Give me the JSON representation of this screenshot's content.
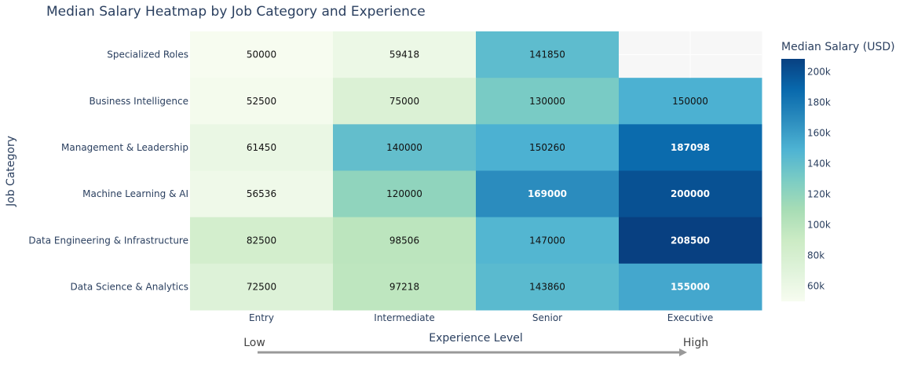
{
  "chart_data": {
    "type": "heatmap",
    "title": "Median Salary Heatmap by Job Category and Experience",
    "xlabel": "Experience Level",
    "ylabel": "Job Category",
    "x_categories": [
      "Entry",
      "Intermediate",
      "Senior",
      "Executive"
    ],
    "y_categories": [
      "Specialized Roles",
      "Business Intelligence",
      "Management & Leadership",
      "Machine Learning & AI",
      "Data Engineering & Infrastructure",
      "Data Science & Analytics"
    ],
    "values": [
      [
        50000,
        59418,
        141850,
        null
      ],
      [
        52500,
        75000,
        130000,
        150000
      ],
      [
        61450,
        140000,
        150260,
        187098
      ],
      [
        56536,
        120000,
        169000,
        200000
      ],
      [
        82500,
        98506,
        147000,
        208500
      ],
      [
        72500,
        97218,
        143860,
        155000
      ]
    ],
    "colorbar": {
      "title": "Median Salary (USD)",
      "min": 50000,
      "max": 208500,
      "ticks": [
        {
          "value": 60000,
          "label": "60k"
        },
        {
          "value": 80000,
          "label": "80k"
        },
        {
          "value": 100000,
          "label": "100k"
        },
        {
          "value": 120000,
          "label": "120k"
        },
        {
          "value": 140000,
          "label": "140k"
        },
        {
          "value": 160000,
          "label": "160k"
        },
        {
          "value": 180000,
          "label": "180k"
        },
        {
          "value": 200000,
          "label": "200k"
        }
      ],
      "colorscale": [
        "#f7fcf0",
        "#e0f3db",
        "#ccebc5",
        "#a8ddb5",
        "#7bccc4",
        "#4eb3d3",
        "#2b8cbe",
        "#0868ac",
        "#084081"
      ]
    },
    "missing_color": "#f7f7f7",
    "annotations": {
      "low": "Low",
      "high": "High"
    },
    "grid": false
  }
}
